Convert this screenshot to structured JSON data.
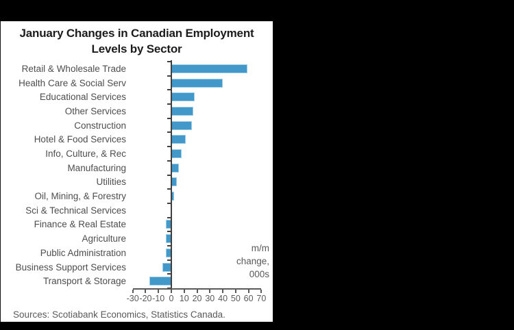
{
  "page": {
    "background": "#000000",
    "panel_background": "#ffffff"
  },
  "title": {
    "line1": "January Changes in Canadian Employment",
    "line2": "Levels by Sector"
  },
  "annotation": {
    "lines": [
      "m/m",
      "change,",
      "000s"
    ]
  },
  "source": "Sources: Scotiabank Economics, Statistics Canada.",
  "chart_data": {
    "type": "bar",
    "orientation": "horizontal",
    "title": "January Changes in Canadian Employment Levels by Sector",
    "xlabel": "m/m change, 000s",
    "ylabel": "",
    "categories": [
      "Retail & Wholesale Trade",
      "Health Care & Social Serv",
      "Educational Services",
      "Other Services",
      "Construction",
      "Hotel & Food Services",
      "Info, Culture, & Rec",
      "Manufacturing",
      "Utilities",
      "Oil, Mining, & Forestry",
      "Sci & Technical Services",
      "Finance & Real Estate",
      "Agriculture",
      "Public Administration",
      "Business Support Services",
      "Transport & Storage"
    ],
    "values": [
      59,
      40,
      18,
      17,
      16,
      11,
      8,
      6,
      4,
      2,
      0,
      -4,
      -4,
      -4,
      -7,
      -17
    ],
    "xlim": [
      -30,
      70
    ],
    "xticks": [
      -30,
      -20,
      -10,
      0,
      10,
      20,
      30,
      40,
      50,
      60,
      70
    ],
    "grid": false,
    "legend": false,
    "bar_color": "#4298c8",
    "bar_border_color": "#9ccbe6",
    "axis_color": "#595959",
    "zero_line_color": "#404040",
    "label_color": "#4d4d4d",
    "title_color": "#1c1c1c"
  }
}
